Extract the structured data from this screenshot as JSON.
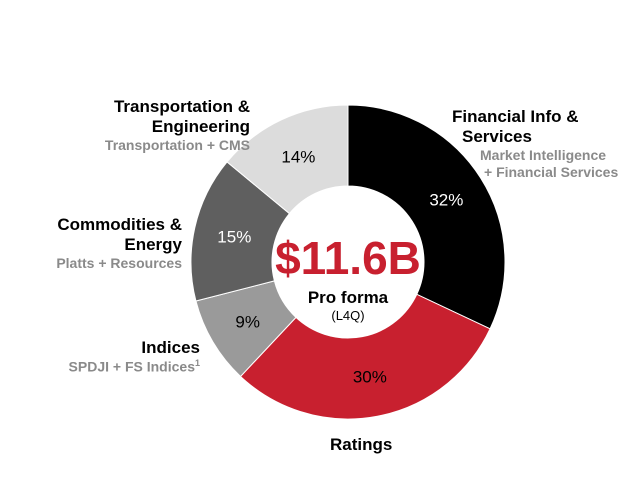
{
  "chart_data": {
    "type": "pie",
    "variant": "donut",
    "unit": "%",
    "total_label": "$11.6B",
    "total_caption": "Pro forma",
    "total_period": "(L4Q)",
    "segments": [
      {
        "name": "Financial Info & Services",
        "title_line1": "Financial Info &",
        "title_line2": "Services",
        "sub_line1": "Market Intelligence",
        "sub_line2": "+ Financial Services",
        "value": 32,
        "label": "32%",
        "color": "#000000",
        "label_color": "#ffffff"
      },
      {
        "name": "Ratings",
        "title_line1": "Ratings",
        "value": 30,
        "label": "30%",
        "color": "#c8202f",
        "label_color": "#000000"
      },
      {
        "name": "Indices",
        "title_line1": "Indices",
        "sub_line1": "SPDJI + FS Indices",
        "sub_sup": "1",
        "value": 9,
        "label": "9%",
        "color": "#9a9a9a",
        "label_color": "#000000"
      },
      {
        "name": "Commodities & Energy",
        "title_line1": "Commodities &",
        "title_line2": "Energy",
        "sub_line1": "Platts + Resources",
        "value": 15,
        "label": "15%",
        "color": "#5f5f5f",
        "label_color": "#ffffff"
      },
      {
        "name": "Transportation & Engineering",
        "title_line1": "Transportation &",
        "title_line2": "Engineering",
        "sub_line1": "Transportation + CMS",
        "value": 14,
        "label": "14%",
        "color": "#dcdcdc",
        "label_color": "#000000"
      }
    ]
  }
}
